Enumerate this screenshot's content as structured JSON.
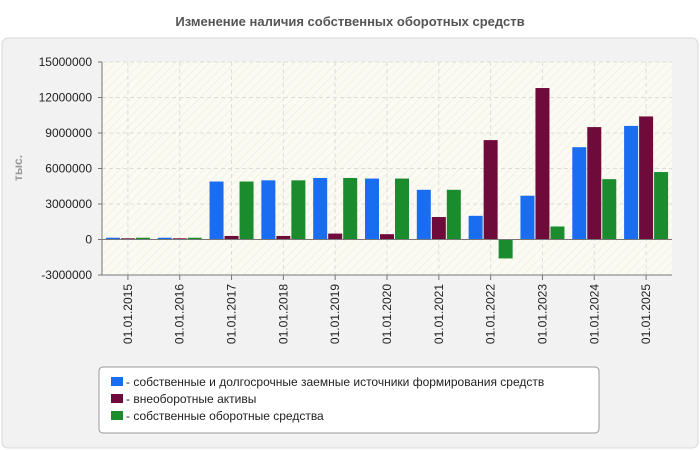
{
  "chart_data": {
    "type": "bar",
    "title": "Изменение наличия собственных оборотных средств",
    "ylabel": "тыс.",
    "xlabel": "",
    "ylim": [
      -3000000,
      15000000
    ],
    "yticks": [
      "15000000",
      "12000000",
      "9000000",
      "6000000",
      "3000000",
      "0",
      "-3000000"
    ],
    "grid": true,
    "legend_position": "bottom",
    "categories": [
      "01.01.2015",
      "01.01.2016",
      "01.01.2017",
      "01.01.2018",
      "01.01.2019",
      "01.01.2020",
      "01.01.2021",
      "01.01.2022",
      "01.01.2023",
      "01.01.2024",
      "01.01.2025"
    ],
    "series": [
      {
        "name": "собственные и долгосрочные заемные источники формирования средств",
        "color": "#1a6cf0",
        "values": [
          150000,
          150000,
          4900000,
          5000000,
          5200000,
          5150000,
          4200000,
          2000000,
          3700000,
          7800000,
          9600000
        ]
      },
      {
        "name": "внеоборотные активы",
        "color": "#6e0b3a",
        "values": [
          100000,
          100000,
          300000,
          300000,
          500000,
          450000,
          1900000,
          8400000,
          12800000,
          9500000,
          10400000
        ]
      },
      {
        "name": "собственные оборотные средства",
        "color": "#1a8c2e",
        "values": [
          150000,
          150000,
          4900000,
          5000000,
          5200000,
          5150000,
          4200000,
          -1600000,
          1100000,
          5100000,
          5700000
        ]
      }
    ]
  }
}
